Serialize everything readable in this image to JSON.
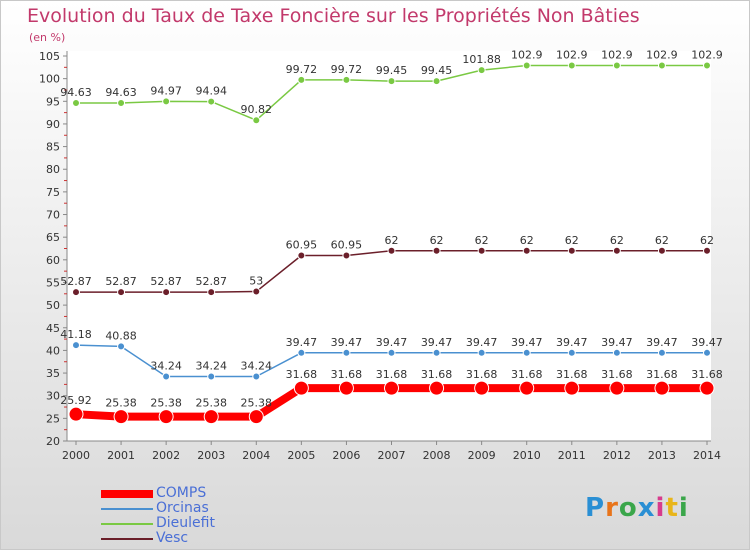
{
  "brand": {
    "logo_text": "Proxiti",
    "logo_letters": [
      "P",
      "r",
      "o",
      "x",
      "i",
      "t",
      "i"
    ]
  },
  "chart_data": {
    "type": "line",
    "title": "Evolution du Taux de Taxe Foncière sur les Propriétés Non Bâties",
    "ylabel": "(en %)",
    "xlabel": "",
    "ylim": [
      20,
      105
    ],
    "yticks": [
      20,
      25,
      30,
      35,
      40,
      45,
      50,
      55,
      60,
      65,
      70,
      75,
      80,
      85,
      90,
      95,
      100,
      105
    ],
    "categories": [
      "2000",
      "2001",
      "2002",
      "2003",
      "2004",
      "2005",
      "2006",
      "2007",
      "2008",
      "2009",
      "2010",
      "2011",
      "2012",
      "2013",
      "2014"
    ],
    "grid": false,
    "legend_position": "bottom-left",
    "series": [
      {
        "name": "COMPS",
        "color": "#ff0000",
        "emphasis": true,
        "values": [
          25.92,
          25.38,
          25.38,
          25.38,
          25.38,
          31.68,
          31.68,
          31.68,
          31.68,
          31.68,
          31.68,
          31.68,
          31.68,
          31.68,
          31.68
        ],
        "labels": [
          "25.92",
          "25.38",
          "25.38",
          "25.38",
          "25.38",
          "31.68",
          "31.68",
          "31.68",
          "31.68",
          "31.68",
          "31.68",
          "31.68",
          "31.68",
          "31.68",
          "31.68"
        ]
      },
      {
        "name": "Orcinas",
        "color": "#4a90d0",
        "emphasis": false,
        "values": [
          41.18,
          40.88,
          34.24,
          34.24,
          34.24,
          39.47,
          39.47,
          39.47,
          39.47,
          39.47,
          39.47,
          39.47,
          39.47,
          39.47,
          39.47
        ],
        "labels": [
          "41.18",
          "40.88",
          "34.24",
          "34.24",
          "34.24",
          "39.47",
          "39.47",
          "39.47",
          "39.47",
          "39.47",
          "39.47",
          "39.47",
          "39.47",
          "39.47",
          "39.47"
        ]
      },
      {
        "name": "Dieulefit",
        "color": "#7ac943",
        "emphasis": false,
        "values": [
          94.63,
          94.63,
          94.97,
          94.94,
          90.82,
          99.72,
          99.72,
          99.45,
          99.45,
          101.88,
          102.9,
          102.9,
          102.9,
          102.9,
          102.9
        ],
        "labels": [
          "94.63",
          "94.63",
          "94.97",
          "94.94",
          "90.82",
          "99.72",
          "99.72",
          "99.45",
          "99.45",
          "101.88",
          "102.9",
          "102.9",
          "102.9",
          "102.9",
          "102.9"
        ]
      },
      {
        "name": "Vesc",
        "color": "#6b1f2a",
        "emphasis": false,
        "values": [
          52.87,
          52.87,
          52.87,
          52.87,
          53,
          60.95,
          60.95,
          62,
          62,
          62,
          62,
          62,
          62,
          62,
          62
        ],
        "labels": [
          "52.87",
          "52.87",
          "52.87",
          "52.87",
          "53",
          "60.95",
          "60.95",
          "62",
          "62",
          "62",
          "62",
          "62",
          "62",
          "62",
          "62"
        ]
      }
    ]
  }
}
